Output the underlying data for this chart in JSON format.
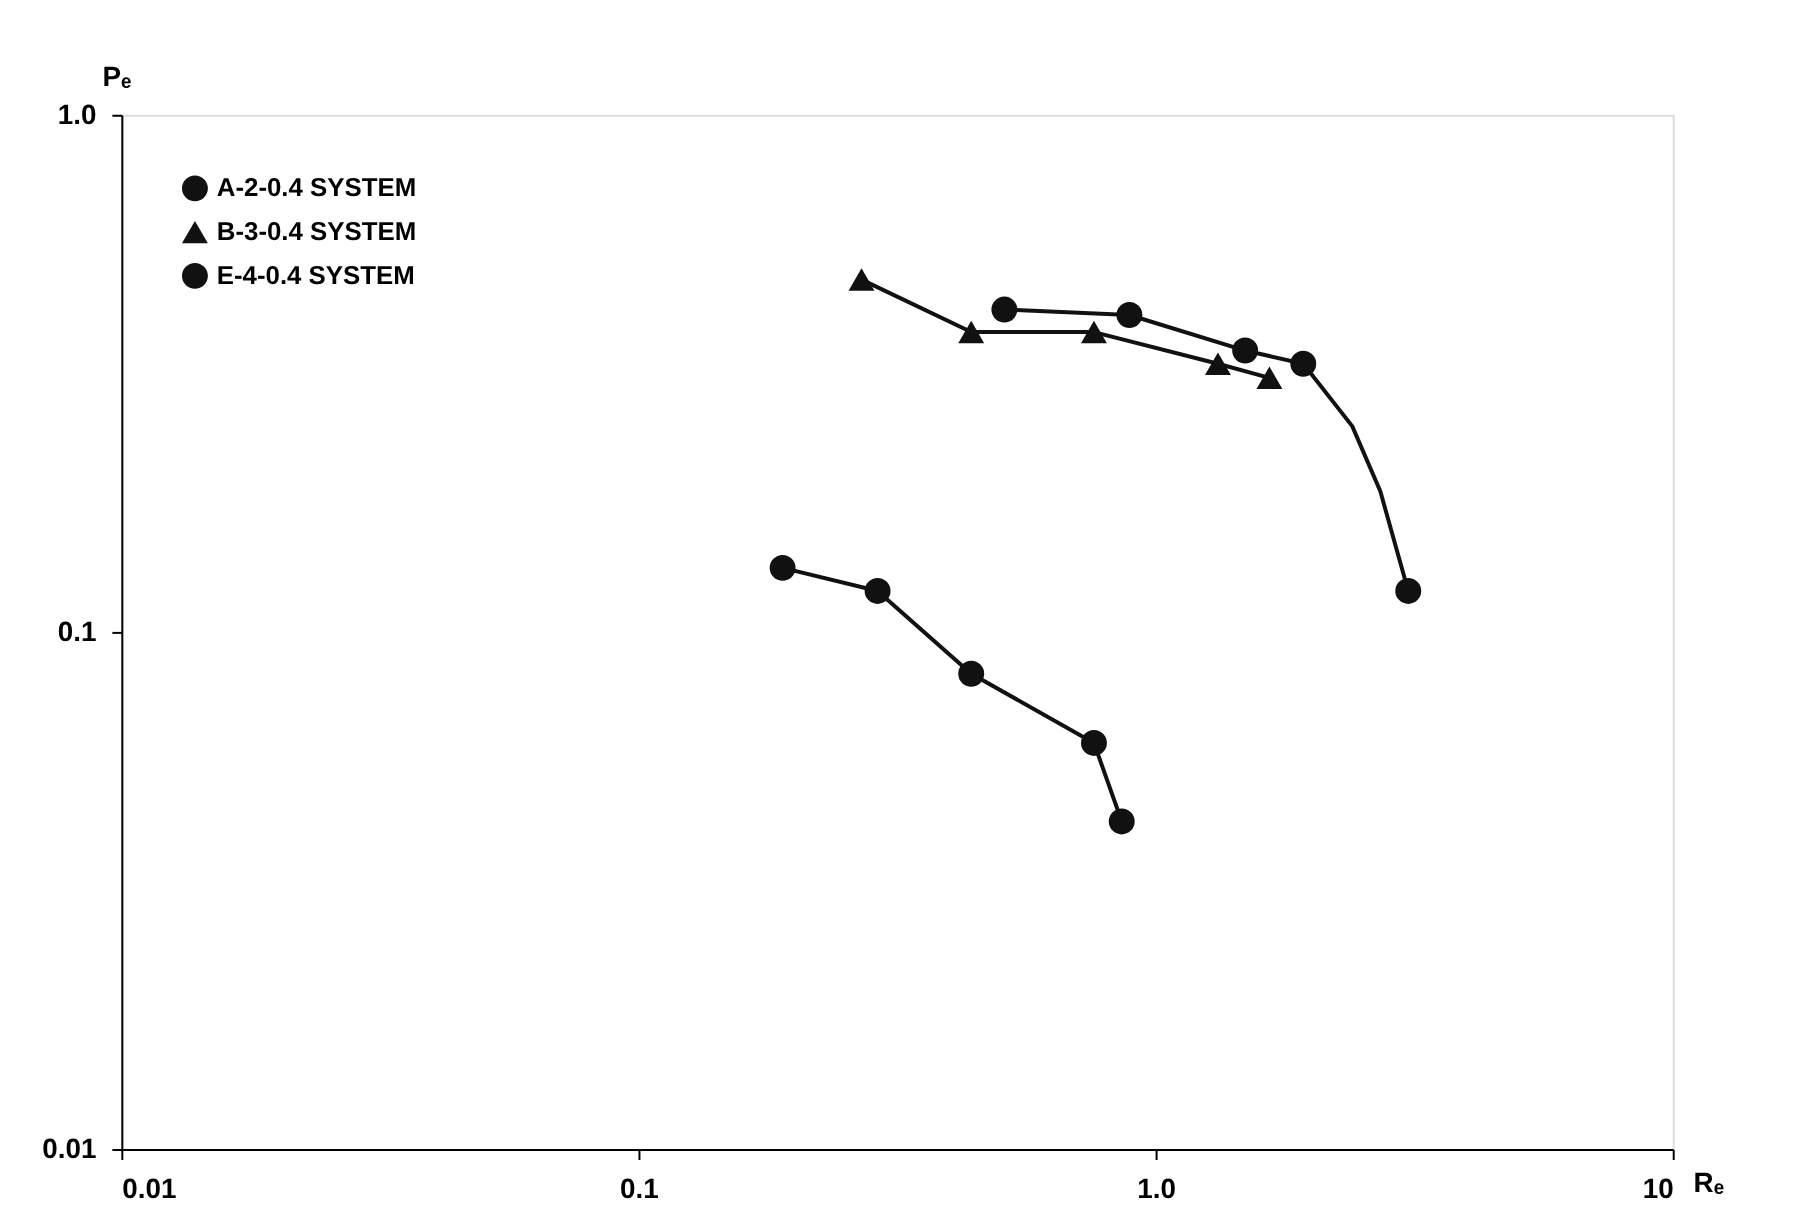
{
  "chart_data": {
    "type": "scatter",
    "xlabel": "Rₑ",
    "ylabel": "Pₑ",
    "log": "xy",
    "grid": false,
    "legend": "top left",
    "xlim": [
      0.01,
      10
    ],
    "ylim": [
      0.01,
      1.0
    ],
    "xticks": [
      0.01,
      0.1,
      {
        "value": 1,
        "label": "1.0"
      },
      10
    ],
    "yticks": [
      0.01,
      0.1,
      {
        "value": 1,
        "label": "1.0"
      }
    ],
    "series": [
      {
        "name": "A-2-0.4 SYSTEM",
        "color": "#111111",
        "marker": "circle",
        "x": [
          0.51,
          0.89,
          1.49,
          1.93,
          3.08
        ],
        "values": [
          0.42,
          0.41,
          0.35,
          0.33,
          0.12
        ]
      },
      {
        "name": "B-3-0.4 SYSTEM",
        "color": "#111111",
        "marker": "triangle",
        "x": [
          0.27,
          0.44,
          0.76,
          1.32,
          1.66
        ],
        "values": [
          0.48,
          0.38,
          0.38,
          0.33,
          0.31
        ]
      },
      {
        "name": "E-4-0.4 SYSTEM",
        "color": "#111111",
        "marker": "circle",
        "x": [
          0.19,
          0.29,
          0.44,
          0.76,
          0.86
        ],
        "values": [
          0.133,
          0.12,
          0.083,
          0.061,
          0.043
        ]
      },
      {
        "type": "line",
        "color": "#111111",
        "marker": "none",
        "line_style": "solid",
        "x": [
          0.51,
          0.89,
          1.49,
          1.93,
          2.4,
          2.72,
          3.08
        ],
        "values": [
          0.42,
          0.41,
          0.35,
          0.33,
          0.25,
          0.187,
          0.12
        ]
      },
      {
        "type": "line",
        "color": "#111111",
        "marker": "none",
        "line_style": "solid",
        "x": [
          0.27,
          0.44,
          0.76,
          1.32,
          1.66
        ],
        "values": [
          0.48,
          0.38,
          0.38,
          0.33,
          0.31
        ]
      },
      {
        "type": "line",
        "color": "#111111",
        "marker": "none",
        "line_style": "solid",
        "x": [
          0.19,
          0.29,
          0.44,
          0.76,
          0.86
        ],
        "values": [
          0.133,
          0.12,
          0.083,
          0.061,
          0.043
        ]
      }
    ]
  }
}
